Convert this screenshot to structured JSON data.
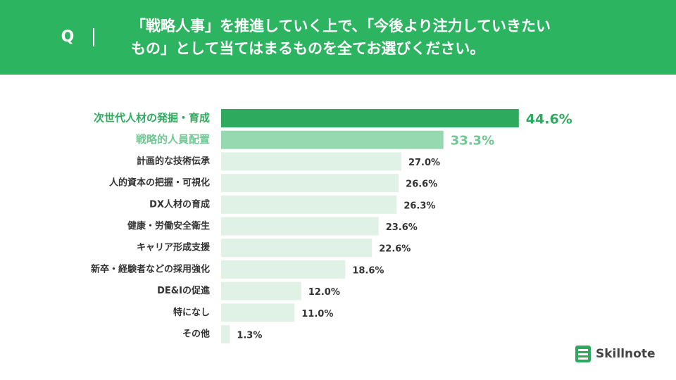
{
  "header": {
    "q": "Q",
    "question": [
      "「戦略人事」を推進していく上で、「今後より注力していきたい",
      "もの」として当てはまるものを全てお選びください。"
    ]
  },
  "chart_data": {
    "type": "bar",
    "orientation": "horizontal",
    "categories": [
      "次世代人材の発掘・育成",
      "戦略的人員配置",
      "計画的な技術伝承",
      "人的資本の把握・可視化",
      "DX人材の育成",
      "健康・労働安全衛生",
      "キャリア形成支援",
      "新卒・経験者などの採用強化",
      "DE&Iの促進",
      "特になし",
      "その他"
    ],
    "values": [
      44.6,
      33.3,
      27.0,
      26.6,
      26.3,
      23.6,
      22.6,
      18.6,
      12.0,
      11.0,
      1.3
    ],
    "value_labels": [
      "44.6%",
      "33.3%",
      "27.0%",
      "26.6%",
      "26.3%",
      "23.6%",
      "22.6%",
      "18.6%",
      "12.0%",
      "11.0%",
      "1.3%"
    ],
    "colors": [
      "#2eaa5e",
      "#96d8b0",
      "#e0f2e6",
      "#e0f2e6",
      "#e0f2e6",
      "#e0f2e6",
      "#e0f2e6",
      "#e0f2e6",
      "#e0f2e6",
      "#e0f2e6",
      "#e0f2e6"
    ]
  },
  "logo": "Skillnote"
}
